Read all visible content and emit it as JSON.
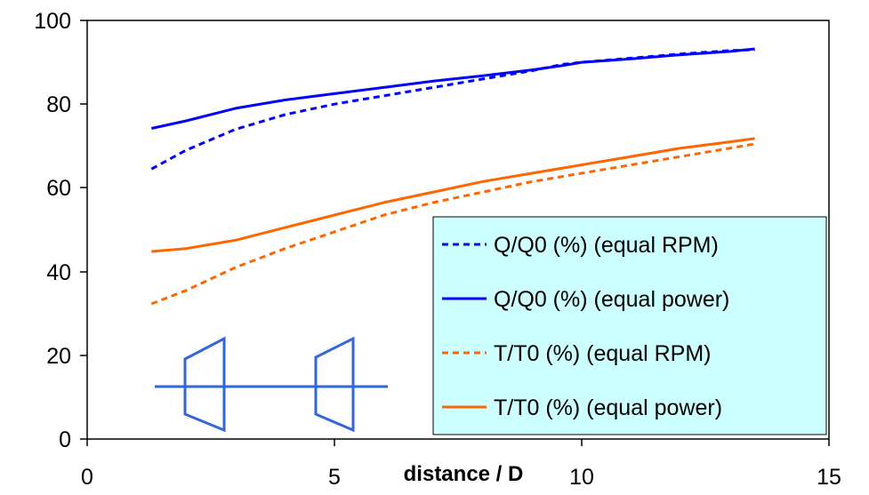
{
  "chart_data": {
    "type": "line",
    "xlabel": "distance / D",
    "ylabel": "",
    "xlim": [
      0,
      15
    ],
    "ylim": [
      0,
      100
    ],
    "x_ticks": [
      "0",
      "5",
      "10",
      "15"
    ],
    "y_ticks": [
      "0",
      "20",
      "40",
      "60",
      "80",
      "100"
    ],
    "grid": false,
    "legend_position": "bottom-right",
    "legend_background": "#CCFFFF",
    "series": [
      {
        "name": "Q/Q0 (%) (equal RPM)",
        "color": "#0000FF",
        "style": "dashed",
        "x": [
          1.3,
          2,
          3,
          4,
          5,
          6,
          7,
          8,
          9,
          9.6,
          10,
          11,
          12,
          13,
          13.5
        ],
        "values": [
          64.5,
          69,
          74,
          77.5,
          80,
          82,
          84,
          86,
          88,
          89.5,
          90,
          91,
          92,
          92.8,
          93
        ]
      },
      {
        "name": "Q/Q0 (%) (equal power)",
        "color": "#0000FF",
        "style": "solid",
        "x": [
          1.3,
          2,
          3,
          4,
          5,
          6,
          7,
          8,
          9,
          9.6,
          10,
          11,
          12,
          13,
          13.5
        ],
        "values": [
          74.2,
          76,
          79,
          81,
          82.5,
          84,
          85.5,
          86.8,
          88.2,
          89.2,
          90,
          90.8,
          91.8,
          92.6,
          93.2
        ]
      },
      {
        "name": "T/T0 (%) (equal RPM)",
        "color": "#FF6600",
        "style": "dashed",
        "x": [
          1.3,
          2,
          3,
          4,
          5,
          6,
          7,
          8,
          9,
          10,
          11,
          12,
          13,
          13.5
        ],
        "values": [
          32.3,
          35.5,
          41,
          45.5,
          49.5,
          53.5,
          56.5,
          59,
          61.5,
          63.5,
          65.5,
          67.5,
          69.5,
          70.5
        ]
      },
      {
        "name": "T/T0 (%) (equal power)",
        "color": "#FF6600",
        "style": "solid",
        "x": [
          1.3,
          2,
          3,
          4,
          5,
          6,
          7,
          8,
          9,
          10,
          11,
          12,
          13,
          13.5
        ],
        "values": [
          44.8,
          45.5,
          47.5,
          50.5,
          53.5,
          56.5,
          59,
          61.5,
          63.5,
          65.5,
          67.5,
          69.5,
          71,
          71.8
        ]
      }
    ]
  },
  "inset_diagram": {
    "description_icon": "duct-propeller-icon",
    "color": "#3366DD"
  }
}
